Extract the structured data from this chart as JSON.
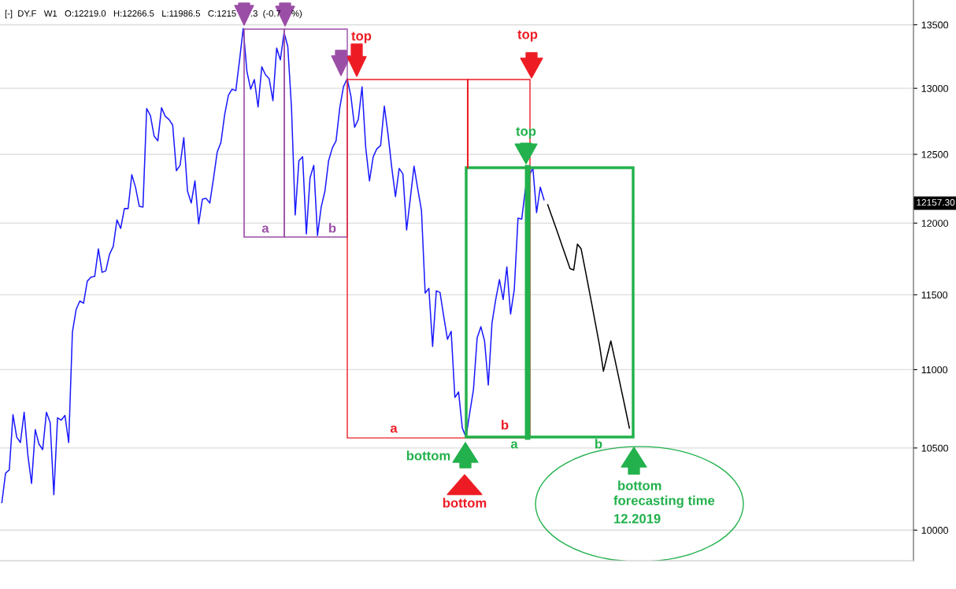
{
  "chart_data": {
    "type": "line",
    "title": "[-]  DY.F   W1   O:12219.0   H:12266.5   L:11986.5   C:1215",
    "log": true,
    "grid": "y",
    "categories": [
      null,
      null,
      null,
      null,
      null,
      null,
      null,
      null,
      null,
      null,
      null,
      null,
      null,
      null,
      null,
      null,
      null,
      null,
      null,
      null,
      null,
      null,
      null,
      null,
      null,
      null,
      null,
      null,
      null,
      null,
      null,
      null,
      null,
      null,
      null,
      null,
      null,
      null,
      null,
      null,
      null,
      null,
      null,
      null,
      null,
      null,
      null,
      null,
      null,
      null,
      null,
      null,
      null,
      null,
      null,
      null,
      null,
      null,
      null,
      null,
      null,
      null,
      null,
      null,
      null,
      null,
      null,
      null,
      null,
      null,
      null,
      null,
      null,
      null,
      null,
      null,
      null,
      null,
      null,
      null,
      null,
      null,
      null,
      null,
      null,
      null,
      null,
      null,
      null,
      null,
      null,
      null,
      null,
      null,
      null,
      null,
      null,
      null,
      null,
      null,
      null,
      null,
      null,
      null,
      null,
      null,
      null,
      null,
      null,
      null,
      null,
      null,
      null,
      null,
      null,
      null,
      null,
      null,
      null,
      null,
      null,
      null,
      null,
      null,
      null,
      null,
      null,
      null,
      null,
      null,
      null,
      null,
      null,
      null,
      null,
      null,
      null,
      null,
      null,
      null,
      null,
      null,
      null,
      null,
      null,
      null,
      null,
      null,
      null,
      null,
      null,
      null,
      null,
      null,
      null,
      null,
      null,
      null,
      null,
      null,
      null,
      null,
      null,
      null,
      null,
      null,
      null,
      null,
      null,
      null,
      null,
      null,
      null,
      null,
      null,
      null,
      null,
      null,
      null,
      null,
      null,
      null,
      null,
      null,
      null,
      null,
      null,
      null,
      null,
      null,
      null,
      null,
      null,
      null,
      null,
      null,
      null,
      null,
      null,
      null,
      null,
      null,
      null,
      null,
      null,
      null,
      null,
      null,
      null,
      null,
      null,
      null,
      null,
      null,
      null,
      null,
      null,
      null,
      null,
      null,
      null,
      null,
      null,
      null,
      null,
      null,
      null,
      null,
      null,
      null,
      null,
      null,
      null,
      null,
      null,
      null,
      null,
      null,
      null,
      null,
      null,
      null,
      null,
      null,
      null,
      null
    ],
    "ylim": [
      9820,
      13700
    ],
    "yticks": [
      10000,
      10500,
      11000,
      11500,
      12000,
      12500,
      13000,
      13500
    ],
    "series": [
      {
        "color": "#1a1aff",
        "values": [
          10165,
          10344,
          10364,
          10710,
          10568,
          10534,
          10725,
          10456,
          10281,
          10615,
          10524,
          10490,
          10725,
          10660,
          10213,
          10690,
          10675,
          10705,
          10534,
          11247,
          11400,
          11458,
          11442,
          11593,
          11621,
          11626,
          11818,
          11654,
          11665,
          11780,
          11835,
          12023,
          11962,
          12104,
          12104,
          12350,
          12258,
          12121,
          12115,
          12845,
          12792,
          12637,
          12601,
          12851,
          12786,
          12762,
          12720,
          12379,
          12419,
          12625,
          12230,
          12144,
          12305,
          11995,
          12172,
          12178,
          12144,
          12322,
          12518,
          12589,
          12798,
          12946,
          12994,
          12982,
          13216,
          13470,
          13130,
          12994,
          13068,
          12857,
          13167,
          13105,
          13074,
          12905,
          13315,
          13222,
          13438,
          13327,
          12851,
          12058,
          12454,
          12482,
          11923,
          12328,
          12419,
          11912,
          12115,
          12230,
          12454,
          12548,
          12601,
          12851,
          13012,
          13074,
          12940,
          12702,
          12762,
          13012,
          12548,
          12305,
          12482,
          12542,
          12565,
          12863,
          12649,
          12402,
          12190,
          12396,
          12356,
          11951,
          12178,
          12413,
          12247,
          12092,
          11511,
          11544,
          11153,
          11527,
          11516,
          11353,
          11200,
          11253,
          10820,
          10855,
          10625,
          10568,
          10721,
          10870,
          11210,
          11284,
          11189,
          10900,
          11310,
          11468,
          11604,
          11468,
          11692,
          11369,
          11538,
          12035,
          12029,
          12247,
          12339,
          12402,
          12075,
          12259,
          12167,
          null,
          null,
          null,
          null,
          null,
          null,
          null,
          null,
          null,
          null,
          null,
          null,
          null,
          null,
          null,
          null,
          null,
          null,
          null,
          null,
          null,
          null,
          null,
          null,
          null,
          null,
          null,
          null,
          null,
          null,
          null,
          null,
          null,
          null,
          null,
          null,
          null,
          null,
          null,
          null,
          null,
          null,
          null,
          null,
          null,
          null,
          null,
          null,
          null,
          null,
          null,
          null,
          null,
          null,
          null,
          null,
          null,
          null,
          null,
          null,
          null,
          null,
          null,
          null,
          null,
          null,
          null,
          null,
          null,
          null,
          null,
          null,
          null,
          null,
          null,
          null,
          null,
          null,
          null,
          null,
          null,
          null,
          null,
          null,
          null,
          null,
          null,
          null,
          null,
          null,
          null,
          null,
          null,
          null,
          null,
          null,
          null,
          null,
          null
        ]
      },
      {
        "color": "#000000",
        "values": [
          null,
          null,
          null,
          null,
          null,
          null,
          null,
          null,
          null,
          null,
          null,
          null,
          null,
          null,
          null,
          null,
          null,
          null,
          null,
          null,
          null,
          null,
          null,
          null,
          null,
          null,
          null,
          null,
          null,
          null,
          null,
          null,
          null,
          null,
          null,
          null,
          null,
          null,
          null,
          null,
          null,
          null,
          null,
          null,
          null,
          null,
          null,
          null,
          null,
          null,
          null,
          null,
          null,
          null,
          null,
          null,
          null,
          null,
          null,
          null,
          null,
          null,
          null,
          null,
          null,
          null,
          null,
          null,
          null,
          null,
          null,
          null,
          null,
          null,
          null,
          null,
          null,
          null,
          null,
          null,
          null,
          null,
          null,
          null,
          null,
          null,
          null,
          null,
          null,
          null,
          null,
          null,
          null,
          null,
          null,
          null,
          null,
          null,
          null,
          null,
          null,
          null,
          null,
          null,
          null,
          null,
          null,
          null,
          null,
          null,
          null,
          null,
          null,
          null,
          null,
          null,
          null,
          null,
          null,
          null,
          null,
          null,
          null,
          null,
          null,
          null,
          null,
          null,
          null,
          null,
          null,
          null,
          null,
          null,
          null,
          null,
          null,
          null,
          null,
          null,
          null,
          null,
          null,
          null,
          null,
          null,
          null,
          12132,
          12057,
          11982,
          11907,
          11831,
          11756,
          11681,
          11670,
          11851,
          11818,
          11685,
          11552,
          11419,
          11286,
          11153,
          10990,
          11090,
          11189,
          11076,
          10963,
          10850,
          10738,
          10625,
          null,
          null,
          null,
          null,
          null,
          null,
          null,
          null,
          null,
          null,
          null,
          null,
          null,
          null,
          null,
          null,
          null,
          null,
          null,
          null,
          null,
          null,
          null,
          null,
          null,
          null,
          null,
          null,
          null,
          null,
          null,
          null,
          null,
          null,
          null,
          null,
          null,
          null,
          null,
          null,
          null,
          null,
          null,
          null,
          null,
          null,
          null,
          null,
          null,
          null,
          null,
          null,
          null,
          null,
          null,
          null,
          null,
          null,
          null,
          null,
          null,
          null,
          null,
          null,
          null,
          null,
          null,
          null,
          null,
          null,
          null,
          null,
          null,
          null,
          null,
          null
        ]
      }
    ],
    "annotations": [
      ".3  (-0.7",
      "%)",
      "top",
      "top",
      "top",
      "a",
      "b",
      "a",
      "b",
      "a",
      "b",
      "bottom",
      "bottom",
      "bottom",
      "forecasting time",
      "12.2019",
      "12157.30"
    ]
  }
}
